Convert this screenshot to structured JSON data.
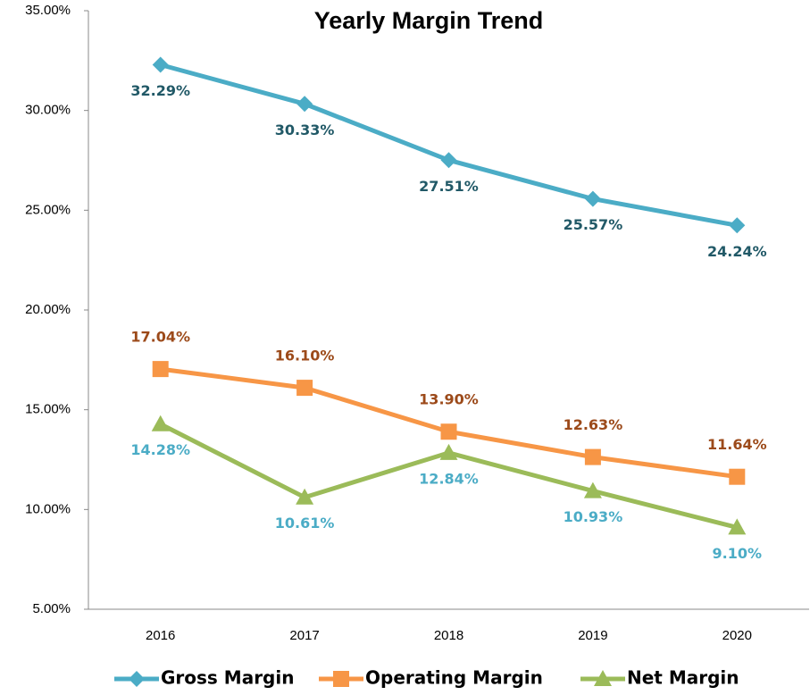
{
  "chart_data": {
    "type": "line",
    "title": "Yearly Margin Trend",
    "categories": [
      "2016",
      "2017",
      "2018",
      "2019",
      "2020"
    ],
    "series": [
      {
        "name": "Gross Margin",
        "color": "#4bacc6",
        "label_color": "#215967",
        "marker": "diamond",
        "values": [
          32.29,
          30.33,
          27.51,
          25.57,
          24.24
        ],
        "value_labels": [
          "32.29%",
          "30.33%",
          "27.51%",
          "25.57%",
          "24.24%"
        ]
      },
      {
        "name": "Operating Margin",
        "color": "#f79646",
        "label_color": "#9c4a1a",
        "marker": "square",
        "values": [
          17.04,
          16.1,
          13.9,
          12.63,
          11.64
        ],
        "value_labels": [
          "17.04%",
          "16.10%",
          "13.90%",
          "12.63%",
          "11.64%"
        ]
      },
      {
        "name": "Net Margin",
        "color": "#9bbb59",
        "label_color": "#4bacc6",
        "marker": "triangle",
        "values": [
          14.28,
          10.61,
          12.84,
          10.93,
          9.1
        ],
        "value_labels": [
          "14.28%",
          "10.61%",
          "12.84%",
          "10.93%",
          "9.10%"
        ]
      }
    ],
    "ylim": [
      5,
      35
    ],
    "yticks": [
      {
        "value": 5,
        "label": "5.00%"
      },
      {
        "value": 10,
        "label": "10.00%"
      },
      {
        "value": 15,
        "label": "15.00%"
      },
      {
        "value": 20,
        "label": "20.00%"
      },
      {
        "value": 25,
        "label": "25.00%"
      },
      {
        "value": 30,
        "label": "30.00%"
      },
      {
        "value": 35,
        "label": "35.00%"
      }
    ],
    "grid": false,
    "legend": "bottom"
  }
}
